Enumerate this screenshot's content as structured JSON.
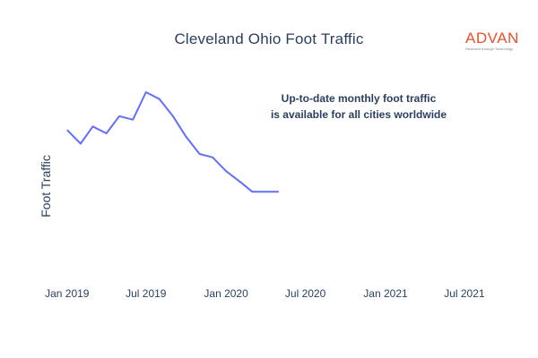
{
  "chart_data": {
    "type": "line",
    "title": "Cleveland Ohio Foot Traffic",
    "xlabel": "",
    "ylabel": "Foot Traffic",
    "xlim": [
      "2018-11-15",
      "2021-09-01"
    ],
    "x_ticks": [
      "Jan 2019",
      "Jul 2019",
      "Jan 2020",
      "Jul 2020",
      "Jan 2021",
      "Jul 2021"
    ],
    "y_ticks": [],
    "grid": false,
    "legend": "none",
    "annotation_lines": [
      "Up-to-date monthly foot traffic",
      "is available for all cities worldwide"
    ],
    "series": [
      {
        "color": "#636efa",
        "x": [
          "2019-01-01",
          "2019-02-01",
          "2019-03-01",
          "2019-04-01",
          "2019-05-01",
          "2019-06-01",
          "2019-07-01",
          "2019-08-01",
          "2019-09-01",
          "2019-10-01",
          "2019-11-01",
          "2019-12-01",
          "2020-01-01",
          "2020-02-01",
          "2020-03-01",
          "2020-04-01",
          "2020-05-01"
        ],
        "values": [
          0.73,
          0.69,
          0.74,
          0.72,
          0.77,
          0.76,
          0.84,
          0.82,
          0.77,
          0.71,
          0.66,
          0.65,
          0.61,
          0.58,
          0.55,
          0.55,
          0.55
        ]
      }
    ]
  },
  "logo": {
    "word": "ADVAN",
    "tagline": "Research through Technology",
    "color": "#e8502c"
  }
}
